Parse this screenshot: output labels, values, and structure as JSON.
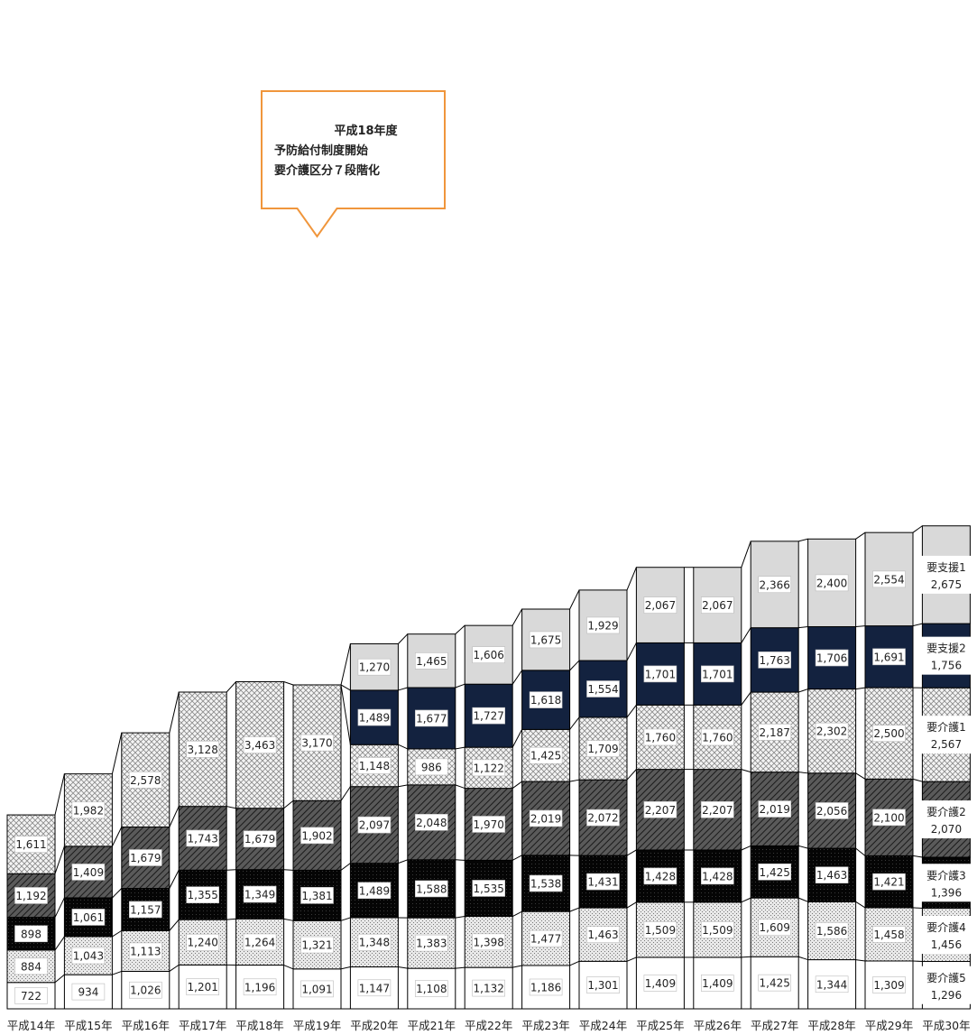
{
  "chart_data": {
    "type": "bar",
    "stacked": true,
    "title": "",
    "xlabel": "",
    "ylabel": "",
    "categories": [
      "平成14年",
      "平成15年",
      "平成16年",
      "平成17年",
      "平成18年",
      "平成19年",
      "平成20年",
      "平成21年",
      "平成22年",
      "平成23年",
      "平成24年",
      "平成25年",
      "平成26年",
      "平成27年",
      "平成28年",
      "平成29年",
      "平成30年"
    ],
    "series": [
      {
        "name": "要介護5",
        "values": [
          722,
          934,
          1026,
          1201,
          1196,
          1091,
          1147,
          1108,
          1132,
          1186,
          1301,
          1409,
          1409,
          1425,
          1344,
          1309,
          1296
        ]
      },
      {
        "name": "要介護4",
        "values": [
          884,
          1043,
          1113,
          1240,
          1264,
          1321,
          1348,
          1383,
          1398,
          1477,
          1463,
          1509,
          1509,
          1609,
          1586,
          1458,
          1456
        ]
      },
      {
        "name": "要介護3",
        "values": [
          898,
          1061,
          1157,
          1355,
          1349,
          1381,
          1489,
          1588,
          1535,
          1538,
          1431,
          1428,
          1428,
          1425,
          1463,
          1421,
          1396
        ]
      },
      {
        "name": "要介護2",
        "values": [
          1192,
          1409,
          1679,
          1743,
          1679,
          1902,
          2097,
          2048,
          1970,
          2019,
          2072,
          2207,
          2207,
          2019,
          2056,
          2100,
          2070
        ]
      },
      {
        "name": "要介護1",
        "values": [
          1611,
          1982,
          2578,
          3128,
          3463,
          3170,
          1148,
          986,
          1122,
          1425,
          1709,
          1760,
          1760,
          2187,
          2302,
          2500,
          2567
        ]
      },
      {
        "name": "要支援2",
        "values": [
          null,
          null,
          null,
          null,
          null,
          null,
          1489,
          1677,
          1727,
          1618,
          1554,
          1701,
          1701,
          1763,
          1706,
          1691,
          1756
        ]
      },
      {
        "name": "要支援1",
        "values": [
          null,
          null,
          null,
          null,
          null,
          null,
          1270,
          1465,
          1606,
          1675,
          1929,
          2067,
          2067,
          2366,
          2400,
          2554,
          2675
        ]
      },
      {
        "name": "要支援",
        "values": [
          null,
          null,
          null,
          null,
          null,
          null,
          null,
          null,
          null,
          null,
          null,
          null,
          null,
          null,
          null,
          null,
          null
        ]
      }
    ],
    "legend": {
      "placement": "right",
      "entries": [
        {
          "name": "要支援1",
          "value": "2,675"
        },
        {
          "name": "要支援2",
          "value": "1,756"
        },
        {
          "name": "要介護1",
          "value": "2,567"
        },
        {
          "name": "要介護2",
          "value": "2,070"
        },
        {
          "name": "要介護3",
          "value": "1,396"
        },
        {
          "name": "要介護4",
          "value": "1,456"
        },
        {
          "name": "要介護5",
          "value": "1,296"
        }
      ]
    },
    "callout": {
      "lines": [
        "平成18年度",
        "予防給付制度開始",
        "要介護区分７段階化"
      ]
    }
  }
}
